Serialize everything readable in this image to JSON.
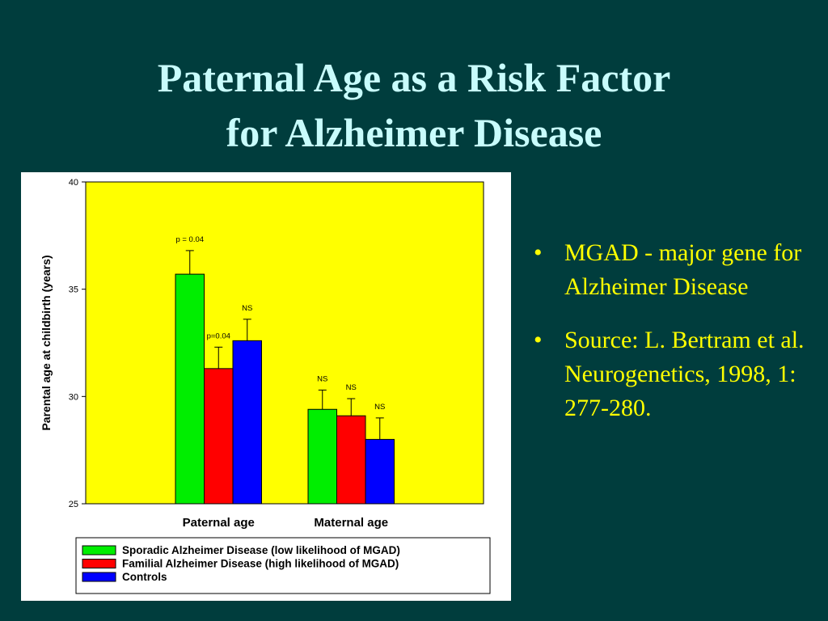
{
  "slide": {
    "title_line1": "Paternal Age as a Risk Factor",
    "title_line2": "for Alzheimer Disease",
    "bullets": [
      "MGAD - major gene for Alzheimer Disease",
      "Source: L. Bertram et al. Neurogenetics, 1998, 1: 277-280."
    ],
    "bullet_symbol": "•"
  },
  "colors": {
    "background": "#003d3d",
    "title": "#c8fcfc",
    "bullet_text": "#ffff00",
    "plot_background": "#ffff00",
    "sporadic": "#00ee00",
    "familial": "#ff0000",
    "controls": "#0000ff"
  },
  "chart_data": {
    "type": "bar",
    "title": "",
    "ylabel": "Parental age at childbirth (years)",
    "xlabel": "",
    "categories": [
      "Paternal age",
      "Maternal age"
    ],
    "ylim": [
      25,
      40
    ],
    "yticks": [
      "25",
      "30",
      "35",
      "40"
    ],
    "legend_position": "bottom",
    "series": [
      {
        "name": "Sporadic Alzheimer Disease (low likelihood of MGAD)",
        "color": "#00ee00",
        "values": [
          35.7,
          29.4
        ],
        "errors": [
          1.1,
          0.9
        ],
        "annotations": [
          "p = 0.04",
          "NS"
        ]
      },
      {
        "name": "Familial Alzheimer Disease (high likelihood of MGAD)",
        "color": "#ff0000",
        "values": [
          31.3,
          29.1
        ],
        "errors": [
          1.0,
          0.8
        ],
        "annotations": [
          "p=0.04",
          "NS"
        ]
      },
      {
        "name": "Controls",
        "color": "#0000ff",
        "values": [
          32.6,
          28.0
        ],
        "errors": [
          1.0,
          1.0
        ],
        "annotations": [
          "NS",
          "NS"
        ]
      }
    ]
  }
}
